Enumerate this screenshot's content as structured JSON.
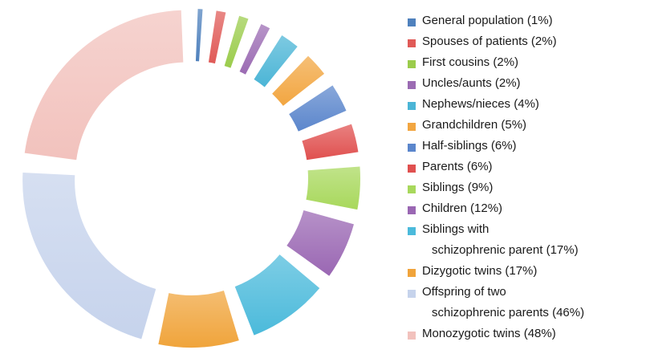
{
  "chart_data": {
    "type": "pie",
    "variant": "exploded-donut",
    "title": "",
    "categories": [
      "General population (1%)",
      "Spouses of patients (2%)",
      "First cousins (2%)",
      "Uncles/aunts (2%)",
      "Nephews/nieces (4%)",
      "Grandchildren (5%)",
      "Half-siblings (6%)",
      "Parents (6%)",
      "Siblings (9%)",
      "Children (12%)",
      "Siblings with schizophrenic parent (17%)",
      "Dizygotic twins (17%)",
      "Offspring of two schizophrenic parents (46%)",
      "Monozygotic twins (48%)"
    ],
    "values": [
      1,
      2,
      2,
      2,
      4,
      5,
      6,
      6,
      9,
      12,
      17,
      17,
      46,
      48
    ],
    "legend_position": "right",
    "legend": [
      {
        "line1": "General population (1%)",
        "line2": "",
        "color": "#4f81bd"
      },
      {
        "line1": "Spouses of patients (2%)",
        "line2": "",
        "color": "#e05a57"
      },
      {
        "line1": "First cousins (2%)",
        "line2": "",
        "color": "#9bcc4c"
      },
      {
        "line1": "Uncles/aunts (2%)",
        "line2": "",
        "color": "#9b6bb3"
      },
      {
        "line1": "Nephews/nieces (4%)",
        "line2": "",
        "color": "#4bb5d6"
      },
      {
        "line1": "Grandchildren (5%)",
        "line2": "",
        "color": "#f2a641"
      },
      {
        "line1": "Half-siblings (6%)",
        "line2": "",
        "color": "#5b86cc"
      },
      {
        "line1": "Parents (6%)",
        "line2": "",
        "color": "#e0504f"
      },
      {
        "line1": "Siblings (9%)",
        "line2": "",
        "color": "#a8d85c"
      },
      {
        "line1": "Children (12%)",
        "line2": "",
        "color": "#9a67b3"
      },
      {
        "line1": "Siblings with",
        "line2": "schizophrenic parent (17%)",
        "color": "#4bbadb"
      },
      {
        "line1": "Dizygotic twins (17%)",
        "line2": "",
        "color": "#f0a43b"
      },
      {
        "line1": "Offspring of two",
        "line2": "schizophrenic parents (46%)",
        "color": "#c6d3ec"
      },
      {
        "line1": "Monozygotic twins (48%)",
        "line2": "",
        "color": "#f2c2bd"
      }
    ]
  }
}
